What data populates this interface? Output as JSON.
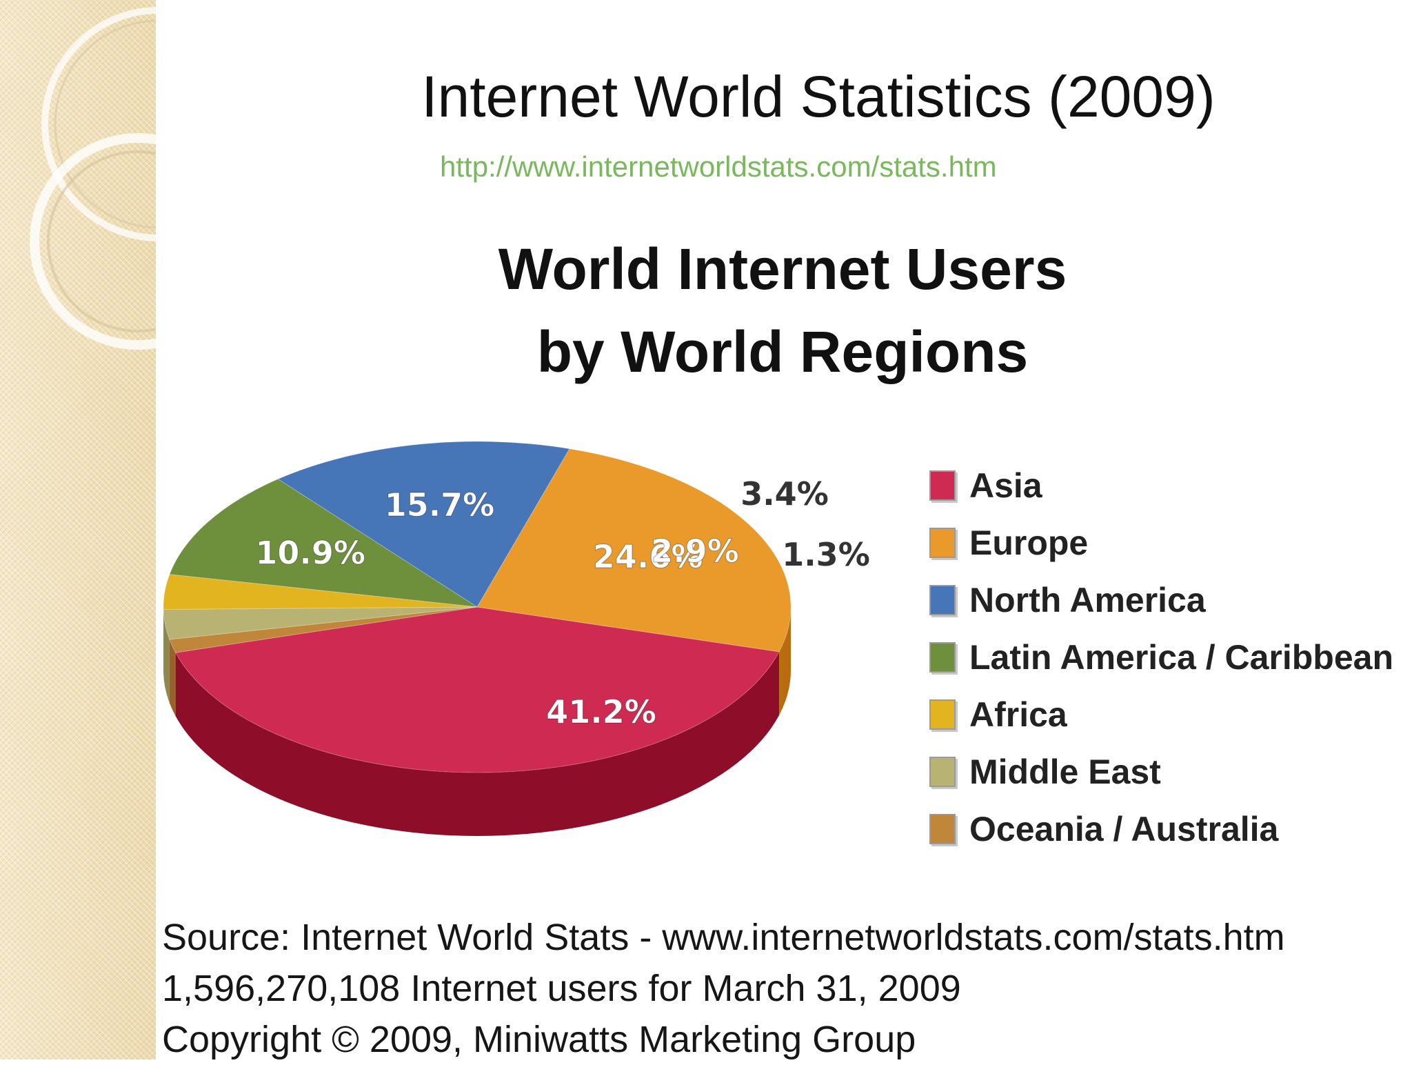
{
  "slide": {
    "title": "Internet World Statistics (2009)",
    "link": "http://www.internetworldstats.com/stats.htm"
  },
  "chart_data": {
    "type": "pie",
    "title": "World Internet Users",
    "subtitle": "by World Regions",
    "categories": [
      "Asia",
      "Europe",
      "North America",
      "Latin America / Caribbean",
      "Africa",
      "Middle East",
      "Oceania / Australia"
    ],
    "values": [
      41.2,
      24.6,
      15.7,
      10.9,
      3.4,
      2.9,
      1.3
    ],
    "value_labels": [
      "41.2%",
      "24.6%",
      "15.7%",
      "10.9%",
      "3.4%",
      "2.9%",
      "1.3%"
    ],
    "colors": [
      "#cf2a52",
      "#e99a2a",
      "#4675b8",
      "#6e8f3b",
      "#e2b520",
      "#b8b373",
      "#c0863a"
    ],
    "side_colors": [
      "#8e0d28",
      "#b86c0e",
      "#2c5089",
      "#4b6a25",
      "#b58b0f",
      "#8c8850",
      "#98632a"
    ],
    "legend_position": "right"
  },
  "footer": {
    "line1": "Source: Internet World Stats -  www.internetworldstats.com/stats.htm",
    "line2": "1,596,270,108 Internet users for March 31, 2009",
    "line3": "Copyright © 2009, Miniwatts Marketing Group"
  }
}
